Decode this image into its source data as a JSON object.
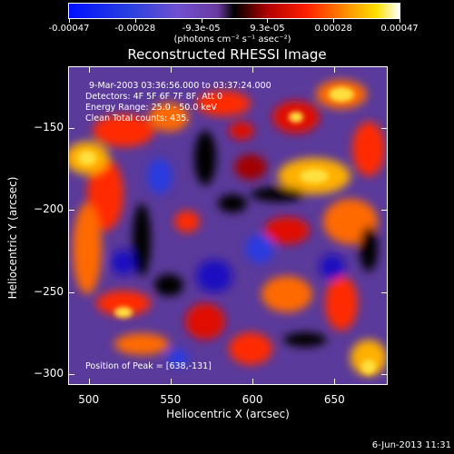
{
  "chart_data": {
    "type": "heatmap",
    "title": "Reconstructed RHESSI Image",
    "xlabel": "Heliocentric X (arcsec)",
    "ylabel": "Heliocentric Y (arcsec)",
    "xlim": [
      488,
      682
    ],
    "ylim": [
      -306,
      -113
    ],
    "x_ticks": [
      "500",
      "550",
      "600",
      "650"
    ],
    "y_ticks": [
      "-150",
      "-200",
      "-250",
      "-300"
    ],
    "colorbar": {
      "ticks": [
        "-0.00047",
        "-0.00028",
        "-9.3e-05",
        "9.3e-05",
        "0.00028",
        "0.00047"
      ],
      "unit": "(photons cm⁻² s⁻¹ asec⁻²)",
      "range": [
        -0.00047,
        0.00047
      ]
    },
    "info": {
      "time_range": "9-Mar-2003 03:36:56.000 to 03:37:24.000",
      "detectors": "Detectors: 4F 5F 6F 7F 8F, Att 0",
      "energy": "Energy Range: 25.0 - 50.0 keV",
      "clean": "Clean     Total counts: 435.",
      "peak": "Position of Peak = [638,-131]"
    },
    "peak_position": [
      638,
      -131
    ],
    "grid": false
  },
  "footer": "6-Jun-2013 11:31"
}
